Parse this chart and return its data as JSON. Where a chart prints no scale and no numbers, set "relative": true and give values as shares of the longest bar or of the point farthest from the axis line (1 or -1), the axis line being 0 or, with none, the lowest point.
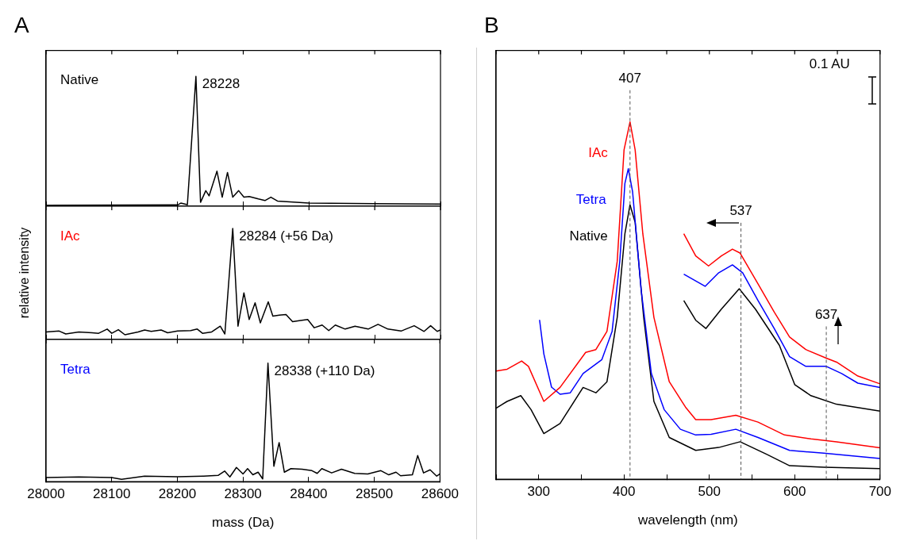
{
  "chart_data": [
    {
      "type": "line",
      "title": "A",
      "relative": true,
      "xlim": [
        28000,
        28600
      ],
      "xticks": [
        28000,
        28100,
        28200,
        28300,
        28400,
        28500,
        28600
      ],
      "tick_labels": false,
      "grid": false,
      "legend": false,
      "marker": "none",
      "annotations": [
        "Native",
        {
          "text": "28228",
          "x": 28228,
          "y": 1
        }
      ],
      "series": [
        {
          "color": "#000000",
          "x": [
            28000,
            28200,
            28205,
            28215,
            28228,
            28235,
            28243,
            28248,
            28260,
            28268,
            28276,
            28284,
            28293,
            28301,
            28309,
            28323,
            28333,
            28342,
            28352,
            28400,
            28500,
            28600
          ],
          "values": [
            0.007,
            0.01,
            0.024,
            0.012,
            1,
            0.03,
            0.12,
            0.08,
            0.27,
            0.07,
            0.26,
            0.07,
            0.12,
            0.07,
            0.075,
            0.056,
            0.044,
            0.07,
            0.04,
            0.024,
            0.02,
            0.017
          ]
        }
      ]
    },
    {
      "type": "line",
      "ylabel": "relative intensity",
      "relative": true,
      "xlim": [
        28000,
        28600
      ],
      "xticks": [
        28000,
        28100,
        28200,
        28300,
        28400,
        28500,
        28600
      ],
      "tick_labels": false,
      "grid": false,
      "legend": false,
      "marker": "none",
      "annotations": [
        "IAc",
        {
          "text": "28284 (+56 Da)",
          "x": 28284,
          "y": 1
        }
      ],
      "series": [
        {
          "color": "#000000",
          "x": [
            28000,
            28020,
            28030,
            28050,
            28070,
            28080,
            28093,
            28100,
            28110,
            28120,
            28140,
            28150,
            28160,
            28175,
            28185,
            28200,
            28220,
            28230,
            28238,
            28252,
            28265,
            28272,
            28284,
            28292,
            28301,
            28309,
            28318,
            28326,
            28338,
            28345,
            28355,
            28365,
            28375,
            28385,
            28398,
            28408,
            28420,
            28430,
            28440,
            28455,
            28470,
            28490,
            28505,
            28520,
            28540,
            28560,
            28575,
            28585,
            28595,
            28600
          ],
          "values": [
            0.068,
            0.076,
            0.05,
            0.068,
            0.061,
            0.056,
            0.094,
            0.056,
            0.089,
            0.043,
            0.068,
            0.086,
            0.073,
            0.086,
            0.061,
            0.076,
            0.081,
            0.094,
            0.056,
            0.068,
            0.12,
            0.05,
            1,
            0.12,
            0.42,
            0.18,
            0.33,
            0.15,
            0.34,
            0.21,
            0.22,
            0.225,
            0.16,
            0.17,
            0.18,
            0.106,
            0.13,
            0.08,
            0.13,
            0.094,
            0.12,
            0.094,
            0.137,
            0.094,
            0.076,
            0.124,
            0.073,
            0.124,
            0.073,
            0.086
          ]
        }
      ]
    },
    {
      "type": "line",
      "xlabel": "mass (Da)",
      "relative": true,
      "xlim": [
        28000,
        28600
      ],
      "xticks": [
        28000,
        28100,
        28200,
        28300,
        28400,
        28500,
        28600
      ],
      "tick_labels": "x",
      "grid": false,
      "legend": false,
      "marker": "none",
      "annotations": [
        "Tetra",
        {
          "text": "28338 (+110 Da)",
          "x": 28338,
          "y": 1
        }
      ],
      "series": [
        {
          "color": "#000000",
          "x": [
            28000,
            28050,
            28100,
            28115,
            28150,
            28200,
            28240,
            28262,
            28272,
            28280,
            28290,
            28300,
            28307,
            28315,
            28323,
            28330,
            28338,
            28347,
            28355,
            28363,
            28373,
            28390,
            28405,
            28413,
            28420,
            28435,
            28450,
            28470,
            28490,
            28510,
            28522,
            28533,
            28540,
            28558,
            28566,
            28575,
            28585,
            28595,
            28600
          ],
          "values": [
            0.035,
            0.04,
            0.035,
            0.02,
            0.047,
            0.042,
            0.047,
            0.053,
            0.09,
            0.04,
            0.12,
            0.065,
            0.11,
            0.058,
            0.08,
            0.023,
            1,
            0.13,
            0.33,
            0.08,
            0.11,
            0.105,
            0.093,
            0.07,
            0.11,
            0.074,
            0.105,
            0.07,
            0.065,
            0.093,
            0.058,
            0.08,
            0.05,
            0.058,
            0.22,
            0.074,
            0.1,
            0.047,
            0.065
          ]
        }
      ]
    },
    {
      "type": "line",
      "title": "B",
      "xlabel": "wavelength (nm)",
      "relative": true,
      "xlim": [
        250,
        700
      ],
      "xticks": [
        {
          "value": 250,
          "label": null
        },
        300,
        {
          "value": 350,
          "label": null
        },
        400,
        {
          "value": 450,
          "label": null
        },
        500,
        {
          "value": 550,
          "label": null
        },
        600,
        {
          "value": 650,
          "label": null
        },
        700
      ],
      "tick_labels": "x",
      "grid": false,
      "legend": false,
      "marker": "none",
      "annotations": [
        "0.1 AU"
      ],
      "ref_lines": [
        {
          "axis": "x",
          "value": 407,
          "label": "407",
          "line_style": "dashed",
          "color": "#555555"
        },
        {
          "axis": "x",
          "value": 537,
          "label": "537",
          "line_style": "dashed",
          "color": "#555555"
        },
        {
          "axis": "x",
          "value": 637,
          "label": "637",
          "line_style": "dashed",
          "color": "#555555"
        }
      ],
      "series": [
        {
          "name": "IAc",
          "color": "#ff0000",
          "x": [
            250,
            263,
            280,
            288,
            306,
            325,
            355,
            367,
            380,
            392,
            400,
            407,
            413,
            422,
            435,
            453,
            472,
            484,
            502,
            531,
            557,
            588,
            619,
            649,
            700
          ],
          "values": [
            0.303,
            0.308,
            0.331,
            0.316,
            0.218,
            0.257,
            0.355,
            0.363,
            0.414,
            0.61,
            0.922,
            1,
            0.922,
            0.687,
            0.453,
            0.273,
            0.202,
            0.167,
            0.167,
            0.179,
            0.16,
            0.124,
            0.113,
            0.105,
            0.088
          ]
        },
        {
          "name": "Tetra",
          "color": "#0000ff",
          "x": [
            301,
            306,
            315,
            325,
            337,
            352,
            374,
            386,
            395,
            401,
            405,
            410,
            420,
            432,
            447,
            466,
            484,
            502,
            531,
            557,
            594,
            634,
            700
          ],
          "values": [
            0.446,
            0.351,
            0.258,
            0.238,
            0.242,
            0.296,
            0.335,
            0.414,
            0.61,
            0.828,
            0.869,
            0.805,
            0.531,
            0.296,
            0.195,
            0.14,
            0.124,
            0.126,
            0.14,
            0.117,
            0.081,
            0.073,
            0.058
          ]
        },
        {
          "name": "Native",
          "color": "#000000",
          "x": [
            250,
            263,
            279,
            291,
            306,
            325,
            352,
            367,
            380,
            392,
            401,
            407,
            413,
            423,
            435,
            453,
            484,
            511,
            536,
            567,
            594,
            634,
            700
          ],
          "values": [
            0.199,
            0.218,
            0.234,
            0.195,
            0.128,
            0.156,
            0.257,
            0.242,
            0.273,
            0.453,
            0.687,
            0.768,
            0.719,
            0.453,
            0.218,
            0.117,
            0.081,
            0.089,
            0.105,
            0.07,
            0.038,
            0.034,
            0.03
          ]
        },
        {
          "color": "#ff0000",
          "x": [
            470,
            484,
            499,
            514,
            527,
            536,
            557,
            576,
            594,
            613,
            637,
            649,
            674,
            700
          ],
          "values": [
            0.687,
            0.625,
            0.597,
            0.625,
            0.644,
            0.633,
            0.547,
            0.468,
            0.398,
            0.363,
            0.339,
            0.328,
            0.289,
            0.267
          ]
        },
        {
          "color": "#0000ff",
          "x": [
            470,
            495,
            511,
            527,
            539,
            557,
            576,
            594,
            613,
            637,
            655,
            674,
            700
          ],
          "values": [
            0.574,
            0.54,
            0.578,
            0.6,
            0.578,
            0.5,
            0.422,
            0.343,
            0.316,
            0.316,
            0.296,
            0.269,
            0.257
          ]
        },
        {
          "color": "#000000",
          "x": [
            470,
            484,
            496,
            514,
            535,
            554,
            582,
            600,
            619,
            649,
            700
          ],
          "values": [
            0.5,
            0.445,
            0.422,
            0.476,
            0.533,
            0.476,
            0.375,
            0.265,
            0.234,
            0.21,
            0.191
          ]
        }
      ]
    }
  ]
}
